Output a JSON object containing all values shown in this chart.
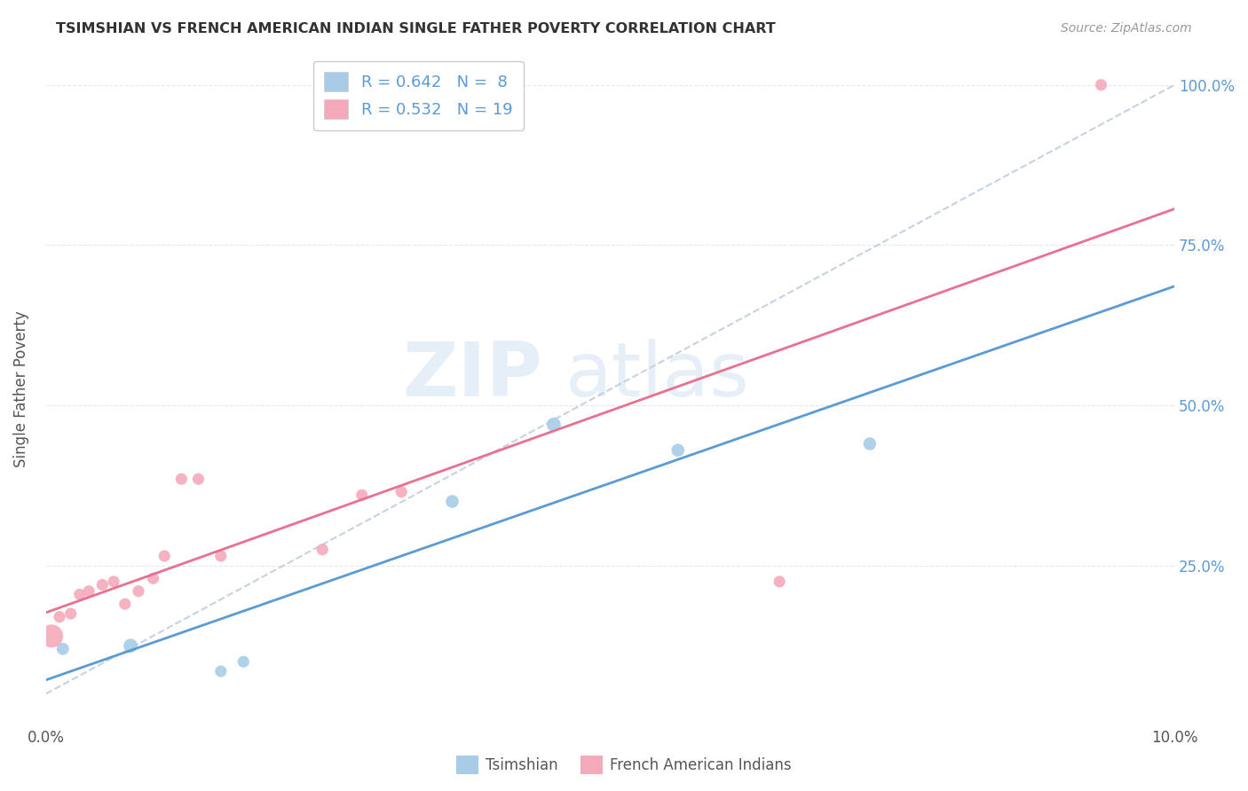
{
  "title": "TSIMSHIAN VS FRENCH AMERICAN INDIAN SINGLE FATHER POVERTY CORRELATION CHART",
  "source": "Source: ZipAtlas.com",
  "ylabel": "Single Father Poverty",
  "xlim": [
    0.0,
    10.0
  ],
  "ylim": [
    0.0,
    105.0
  ],
  "ytick_labels_right": [
    "25.0%",
    "50.0%",
    "75.0%",
    "100.0%"
  ],
  "ytick_vals_right": [
    25.0,
    50.0,
    75.0,
    100.0
  ],
  "blue_color": "#A8CCE8",
  "pink_color": "#F5AABB",
  "blue_line_color": "#5B9BD5",
  "pink_line_color": "#E87090",
  "dashed_line_color": "#C0CEDC",
  "tsimshian_R": 0.642,
  "tsimshian_N": 8,
  "french_R": 0.532,
  "french_N": 19,
  "tsimshian_x": [
    0.15,
    0.75,
    1.55,
    1.75,
    3.6,
    4.5,
    5.6,
    7.3
  ],
  "tsimshian_y": [
    12.0,
    12.5,
    8.5,
    10.0,
    35.0,
    47.0,
    43.0,
    44.0
  ],
  "tsimshian_sizes": [
    100,
    130,
    90,
    90,
    110,
    130,
    110,
    110
  ],
  "french_x": [
    0.05,
    0.12,
    0.22,
    0.3,
    0.38,
    0.5,
    0.6,
    0.7,
    0.82,
    0.95,
    1.05,
    1.2,
    1.35,
    1.55,
    2.45,
    2.8,
    3.15,
    6.5,
    9.35
  ],
  "french_y": [
    14.0,
    17.0,
    17.5,
    20.5,
    21.0,
    22.0,
    22.5,
    19.0,
    21.0,
    23.0,
    26.5,
    38.5,
    38.5,
    26.5,
    27.5,
    36.0,
    36.5,
    22.5,
    100.0
  ],
  "french_sizes": [
    350,
    90,
    90,
    90,
    90,
    90,
    90,
    90,
    90,
    90,
    90,
    90,
    90,
    90,
    90,
    90,
    90,
    90,
    90
  ],
  "watermark_line1": "ZIP",
  "watermark_line2": "atlas",
  "background_color": "#FFFFFF",
  "grid_color": "#E8E8E8",
  "grid_linestyle": "--"
}
